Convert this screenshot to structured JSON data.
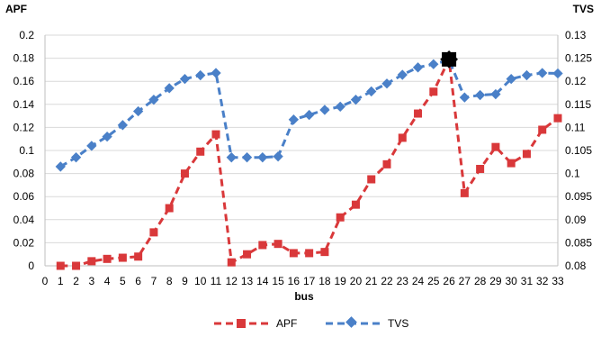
{
  "chart_data": {
    "type": "line",
    "xlabel": "bus",
    "ylabel_left": "APF",
    "ylabel_right": "TVS",
    "x_ticks": [
      0,
      1,
      2,
      3,
      4,
      5,
      6,
      7,
      8,
      9,
      10,
      11,
      12,
      13,
      14,
      15,
      16,
      17,
      18,
      19,
      20,
      21,
      22,
      23,
      24,
      25,
      26,
      27,
      28,
      29,
      30,
      31,
      32,
      33
    ],
    "xlim": [
      0,
      33
    ],
    "y_left": {
      "range": [
        0,
        0.2
      ],
      "ticks": [
        "0",
        "0.02",
        "0.04",
        "0.06",
        "0.08",
        "0.1",
        "0.12",
        "0.14",
        "0.16",
        "0.18",
        "0.2"
      ]
    },
    "y_right": {
      "range": [
        0.08,
        0.13
      ],
      "ticks": [
        "0.08",
        "0.085",
        "0.09",
        "0.095",
        "0.1",
        "0.105",
        "0.11",
        "0.115",
        "0.12",
        "0.125",
        "0.13"
      ]
    },
    "x": [
      1,
      2,
      3,
      4,
      5,
      6,
      7,
      8,
      9,
      10,
      11,
      12,
      13,
      14,
      15,
      16,
      17,
      18,
      19,
      20,
      21,
      22,
      23,
      24,
      25,
      26,
      27,
      28,
      29,
      30,
      31,
      32,
      33
    ],
    "series": [
      {
        "name": "APF",
        "axis": "left",
        "color": "#d9383a",
        "marker": "square",
        "values": [
          0,
          0,
          0.004,
          0.006,
          0.007,
          0.008,
          0.029,
          0.05,
          0.08,
          0.099,
          0.114,
          0.003,
          0.01,
          0.018,
          0.019,
          0.011,
          0.011,
          0.012,
          0.042,
          0.053,
          0.075,
          0.088,
          0.111,
          0.132,
          0.151,
          0.179,
          0.063,
          0.084,
          0.103,
          0.089,
          0.097,
          0.118,
          0.128
        ]
      },
      {
        "name": "TVS",
        "axis": "right",
        "color": "#4a80c8",
        "marker": "diamond",
        "values": [
          0.1015,
          0.1035,
          0.106,
          0.108,
          0.1105,
          0.1135,
          0.116,
          0.1185,
          0.1205,
          0.1213,
          0.1218,
          0.1035,
          0.1035,
          0.1035,
          0.1037,
          0.1117,
          0.1127,
          0.1138,
          0.1145,
          0.116,
          0.1178,
          0.1195,
          0.1214,
          0.123,
          0.1237,
          0.1246,
          0.1165,
          0.117,
          0.1172,
          0.1205,
          0.1213,
          0.1218,
          0.1217
        ]
      }
    ],
    "highlight": {
      "x": 26,
      "color": "#000000"
    },
    "legend": {
      "placement": "bottom",
      "entries": [
        "APF",
        "TVS"
      ]
    },
    "grid": "horizontal"
  }
}
